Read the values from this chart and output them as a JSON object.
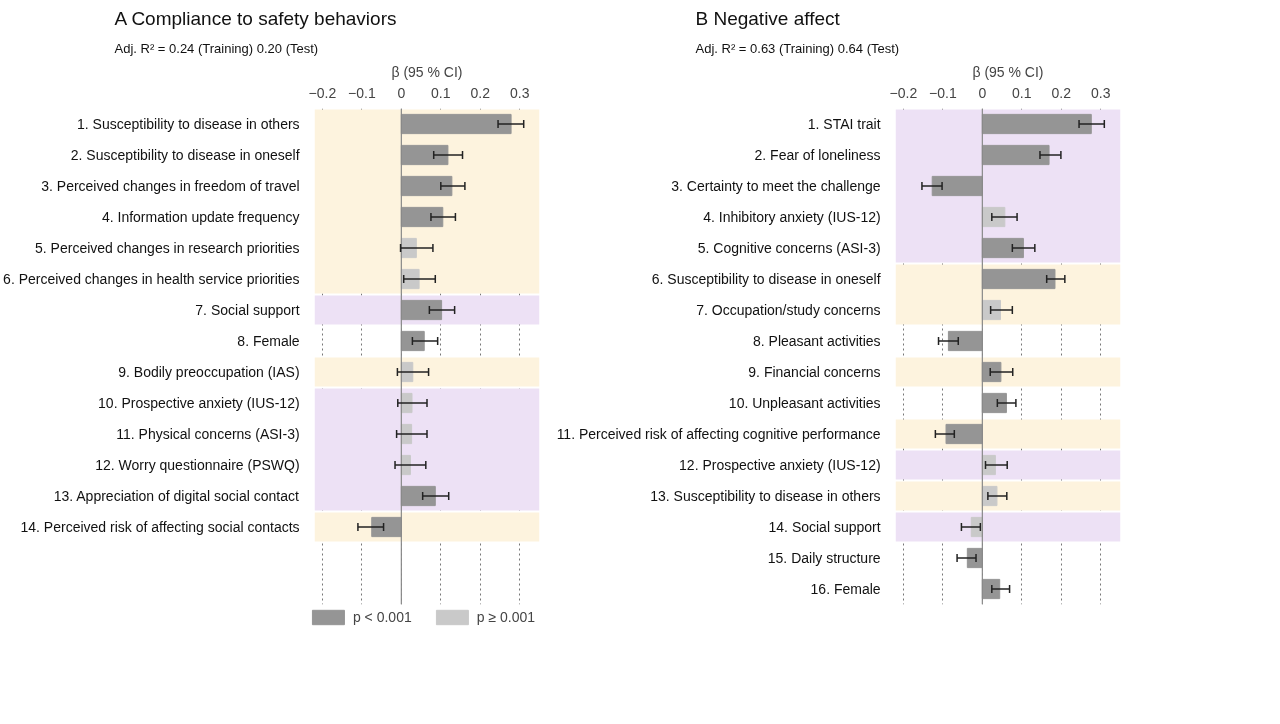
{
  "chart_data": [
    {
      "type": "bar",
      "orientation": "horizontal",
      "title": "A  Compliance to safety behaviors",
      "subtitle": "Adj. R² = 0.24 (Training) 0.20 (Test)",
      "xlabel": "β (95 % CI)",
      "categories": [
        "1.  Susceptibility to disease in others",
        "2.  Susceptibility to disease in oneself",
        "3.  Perceived changes in freedom of travel",
        "4.  Information update frequency",
        "5.  Perceived changes in research priorities",
        "6.  Perceived changes in health service priorities",
        "7.  Social support",
        "8.  Female",
        "9.  Bodily preoccupation (IAS)",
        "10.  Prospective anxiety (IUS-12)",
        "11.  Physical concerns (ASI-3)",
        "12.  Worry questionnaire (PSWQ)",
        "13.  Appreciation of digital social contact",
        "14.  Perceived risk of affecting social contacts"
      ],
      "series": [
        {
          "name": "p < 0.001",
          "color": "#959595",
          "values": [
            0.278,
            0.118,
            0.128,
            0.105,
            null,
            null,
            0.102,
            0.058,
            null,
            null,
            null,
            null,
            0.086,
            -0.075
          ],
          "errors": [
            [
              0.245,
              0.31
            ],
            [
              0.082,
              0.155
            ],
            [
              0.1,
              0.161
            ],
            [
              0.075,
              0.137
            ],
            null,
            null,
            [
              0.071,
              0.135
            ],
            [
              0.028,
              0.092
            ],
            null,
            null,
            null,
            null,
            [
              0.054,
              0.12
            ],
            [
              -0.11,
              -0.045
            ]
          ]
        },
        {
          "name": "p ≥ 0.001",
          "color": "#c9c9c9",
          "values": [
            null,
            null,
            null,
            null,
            0.038,
            0.045,
            null,
            null,
            0.029,
            0.027,
            0.026,
            0.023,
            null,
            null
          ],
          "errors": [
            null,
            null,
            null,
            null,
            [
              -0.002,
              0.08
            ],
            [
              0.006,
              0.086
            ],
            null,
            null,
            [
              -0.01,
              0.069
            ],
            [
              -0.009,
              0.065
            ],
            [
              -0.012,
              0.065
            ],
            [
              -0.016,
              0.062
            ],
            null,
            null
          ]
        }
      ],
      "xlim": [
        -0.22,
        0.35
      ],
      "xticks": [
        -0.2,
        -0.1,
        0,
        0.1,
        0.2,
        0.3
      ],
      "grid": "x",
      "legend": "bottom",
      "ref_lines": [
        {
          "axis": "x",
          "value": 0,
          "color": "#888888"
        }
      ],
      "bands": [
        {
          "axis": "y",
          "from": "1.  Susceptibility to disease in others",
          "to": "6.  Perceived changes in health service priorities",
          "color": "#fdf3de"
        },
        {
          "axis": "y",
          "from": "7.  Social support",
          "to": "7.  Social support",
          "color": "#ede1f5"
        },
        {
          "axis": "y",
          "from": "9.  Bodily preoccupation (IAS)",
          "to": "9.  Bodily preoccupation (IAS)",
          "color": "#fdf3de"
        },
        {
          "axis": "y",
          "from": "10.  Prospective anxiety (IUS-12)",
          "to": "13.  Appreciation of digital social contact",
          "color": "#ede1f5"
        },
        {
          "axis": "y",
          "from": "14.  Perceived risk of affecting social contacts",
          "to": "14.  Perceived risk of affecting social contacts",
          "color": "#fdf3de"
        }
      ]
    },
    {
      "type": "bar",
      "orientation": "horizontal",
      "title": "B  Negative affect",
      "subtitle": "Adj. R² = 0.63 (Training) 0.64 (Test)",
      "xlabel": "β (95 % CI)",
      "categories": [
        "1.  STAI trait",
        "2.  Fear of loneliness",
        "3.  Certainty to meet the challenge",
        "4.  Inhibitory anxiety (IUS-12)",
        "5.  Cognitive concerns (ASI-3)",
        "6.  Susceptibility to disease in oneself",
        "7.  Occupation/study concerns",
        "8.  Pleasant activities",
        "9.  Financial concerns",
        "10.  Unpleasant activities",
        "11.  Perceived risk of affecting cognitive performance",
        "12.  Prospective anxiety (IUS-12)",
        "13.  Susceptibility to disease in others",
        "14.  Social support",
        "15.  Daily structure",
        "16.  Female"
      ],
      "series": [
        {
          "color": "#959595",
          "values": [
            0.276,
            0.169,
            -0.127,
            null,
            0.104,
            0.184,
            null,
            -0.086,
            0.047,
            0.061,
            -0.092,
            null,
            null,
            null,
            -0.038,
            0.044
          ],
          "errors": [
            [
              0.245,
              0.309
            ],
            [
              0.146,
              0.199
            ],
            [
              -0.153,
              -0.102
            ],
            null,
            [
              0.076,
              0.133
            ],
            [
              0.163,
              0.209
            ],
            null,
            [
              -0.111,
              -0.061
            ],
            [
              0.02,
              0.077
            ],
            [
              0.038,
              0.085
            ],
            [
              -0.119,
              -0.071
            ],
            null,
            null,
            null,
            [
              -0.064,
              -0.016
            ],
            [
              0.024,
              0.069
            ]
          ]
        },
        {
          "color": "#c9c9c9",
          "values": [
            null,
            null,
            null,
            0.057,
            null,
            null,
            0.046,
            null,
            null,
            null,
            null,
            0.033,
            0.037,
            -0.028,
            null,
            null
          ],
          "errors": [
            null,
            null,
            null,
            [
              0.024,
              0.088
            ],
            null,
            null,
            [
              0.021,
              0.076
            ],
            null,
            null,
            null,
            null,
            [
              0.008,
              0.063
            ],
            [
              0.014,
              0.062
            ],
            [
              -0.053,
              -0.005
            ],
            null,
            null
          ]
        }
      ],
      "xlim": [
        -0.22,
        0.35
      ],
      "xticks": [
        -0.2,
        -0.1,
        0,
        0.1,
        0.2,
        0.3
      ],
      "grid": "x",
      "ref_lines": [
        {
          "axis": "x",
          "value": 0,
          "color": "#888888"
        }
      ],
      "bands": [
        {
          "axis": "y",
          "from": "1.  STAI trait",
          "to": "5.  Cognitive concerns (ASI-3)",
          "color": "#ede1f5"
        },
        {
          "axis": "y",
          "from": "6.  Susceptibility to disease in oneself",
          "to": "7.  Occupation/study concerns",
          "color": "#fdf3de"
        },
        {
          "axis": "y",
          "from": "9.  Financial concerns",
          "to": "9.  Financial concerns",
          "color": "#fdf3de"
        },
        {
          "axis": "y",
          "from": "11.  Perceived risk of affecting cognitive performance",
          "to": "11.  Perceived risk of affecting cognitive performance",
          "color": "#fdf3de"
        },
        {
          "axis": "y",
          "from": "12.  Prospective anxiety (IUS-12)",
          "to": "12.  Prospective anxiety (IUS-12)",
          "color": "#ede1f5"
        },
        {
          "axis": "y",
          "from": "13.  Susceptibility to disease in others",
          "to": "13.  Susceptibility to disease in others",
          "color": "#fdf3de"
        },
        {
          "axis": "y",
          "from": "14.  Social support",
          "to": "14.  Social support",
          "color": "#ede1f5"
        }
      ]
    }
  ]
}
